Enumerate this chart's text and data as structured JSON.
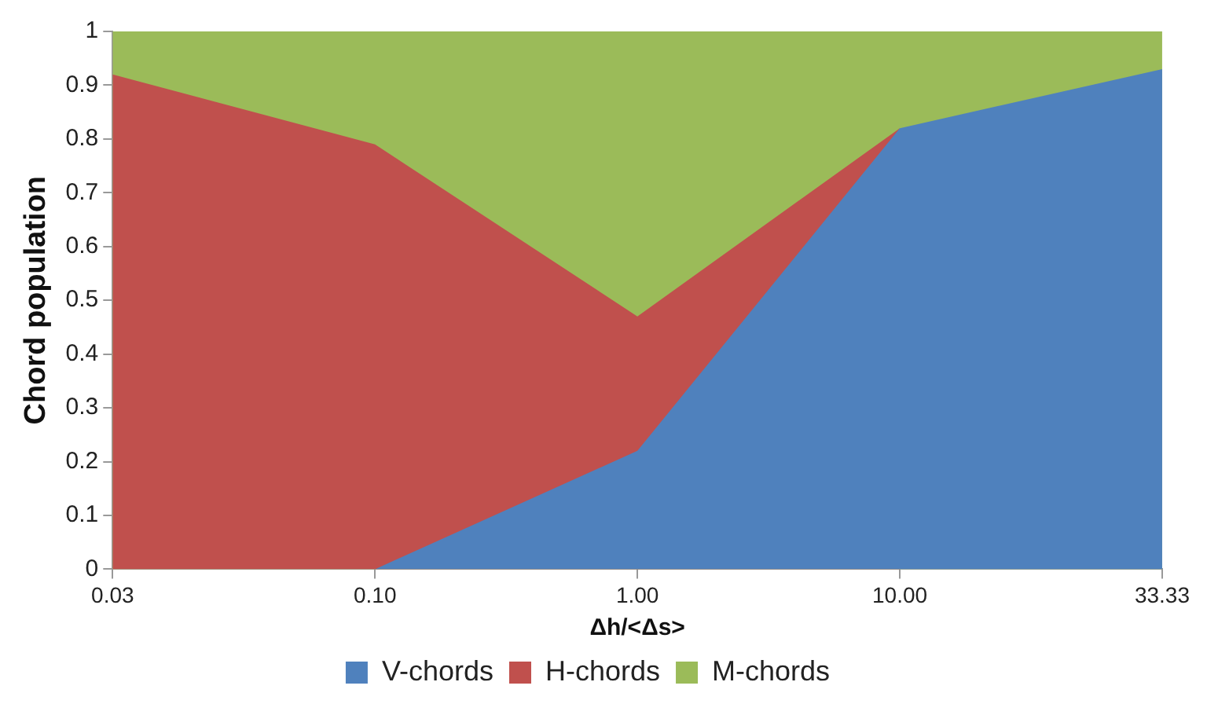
{
  "chart_data": {
    "type": "area",
    "stacked": true,
    "xlabel": "Δh/<Δs>",
    "ylabel": "Chord population",
    "categories": [
      "0.03",
      "0.10",
      "1.00",
      "10.00",
      "33.33"
    ],
    "series": [
      {
        "name": "V-chords",
        "color": "#4f81bd",
        "values": [
          0,
          0,
          0.22,
          0.82,
          0.93
        ]
      },
      {
        "name": "H-chords",
        "color": "#c0504d",
        "values": [
          0.92,
          0.79,
          0.25,
          0,
          null
        ]
      },
      {
        "name": "M-chords",
        "color": "#9bbb59",
        "values": [
          0.08,
          0.21,
          0.53,
          0.18,
          0.07
        ]
      }
    ],
    "ylim": [
      0,
      1
    ],
    "yticks": [
      0,
      {
        "value": 0.1,
        "label": "0.1"
      },
      {
        "value": 0.2,
        "label": "0.2"
      },
      {
        "value": 0.3,
        "label": "0.3"
      },
      {
        "value": 0.4,
        "label": "0.4"
      },
      {
        "value": 0.5,
        "label": "0.5"
      },
      {
        "value": 0.6,
        "label": "0.6"
      },
      {
        "value": 0.7,
        "label": "0.7"
      },
      {
        "value": 0.8,
        "label": "0.8"
      },
      {
        "value": 0.9,
        "label": "0.9"
      },
      1
    ],
    "grid": false,
    "legend": "bottom"
  }
}
